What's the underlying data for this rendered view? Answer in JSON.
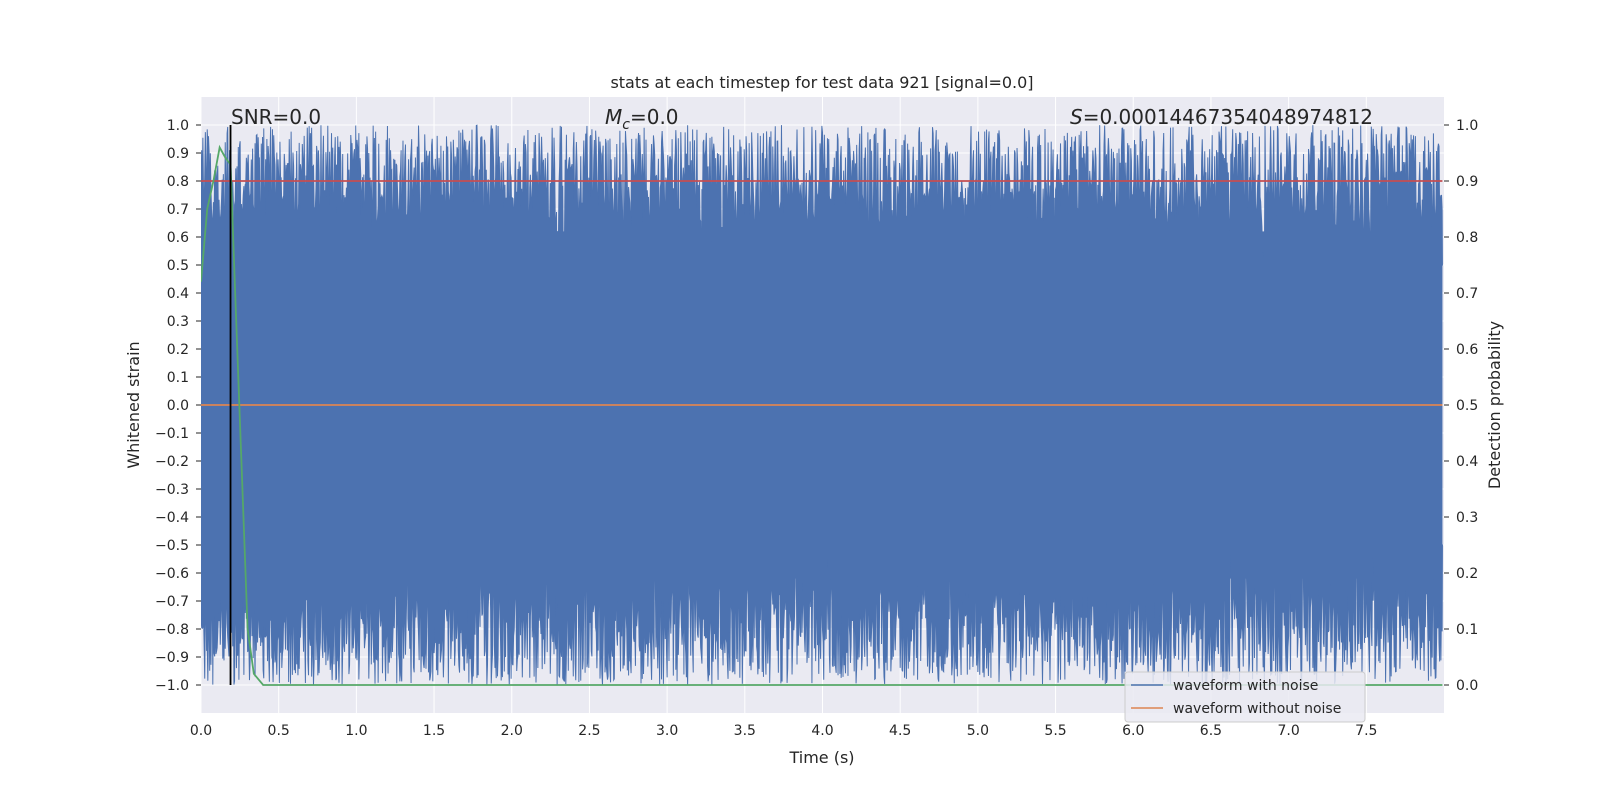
{
  "chart_data": {
    "type": "line",
    "title": "stats at each timestep for test data 921 [signal=0.0]",
    "xlabel": "Time (s)",
    "ylabel_left": "Whitened strain",
    "ylabel_right": "Detection probability",
    "xlim": [
      0.0,
      8.0
    ],
    "ylim_left": [
      -1.1,
      1.1
    ],
    "ylim_right": [
      -0.05,
      1.05
    ],
    "x_ticks": [
      "0.0",
      "0.5",
      "1.0",
      "1.5",
      "2.0",
      "2.5",
      "3.0",
      "3.5",
      "4.0",
      "4.5",
      "5.0",
      "5.5",
      "6.0",
      "6.5",
      "7.0",
      "7.5"
    ],
    "y_ticks_left": [
      "1.0",
      "0.9",
      "0.8",
      "0.7",
      "0.6",
      "0.5",
      "0.4",
      "0.3",
      "0.2",
      "0.1",
      "0.0",
      "−0.1",
      "−0.2",
      "−0.3",
      "−0.4",
      "−0.5",
      "−0.6",
      "−0.7",
      "−0.8",
      "−0.9",
      "−1.0"
    ],
    "y_ticks_right": [
      "1.0",
      "0.9",
      "0.8",
      "0.7",
      "0.6",
      "0.5",
      "0.4",
      "0.3",
      "0.2",
      "0.1",
      "0.0"
    ],
    "grid": true,
    "legend_position": "lower-right",
    "annotations": {
      "snr_label": "SNR=0.0",
      "mc_symbol": "M",
      "mc_subscript": "c",
      "mc_value": "=0.0",
      "s_symbol": "S",
      "s_value": "=0.00014467354048974812"
    },
    "marker_time": 0.19,
    "series": [
      {
        "name": "waveform with noise",
        "color": "#4c72b0",
        "axis": "left",
        "description_value_range": [
          -1.0,
          1.0
        ],
        "x_range": [
          0.0,
          7.99
        ]
      },
      {
        "name": "waveform without noise",
        "color": "#dd8452",
        "axis": "left",
        "x": [
          0.0,
          7.99
        ],
        "y": [
          0.0,
          0.0
        ]
      },
      {
        "color": "#55a868",
        "axis": "right",
        "x": [
          0.0,
          0.04,
          0.08,
          0.12,
          0.16,
          0.19,
          0.22,
          0.26,
          0.3,
          0.34,
          0.4,
          1.0,
          2.0,
          3.0,
          4.0,
          5.0,
          6.0,
          7.0,
          7.99
        ],
        "y": [
          0.72,
          0.85,
          0.9,
          0.96,
          0.94,
          0.93,
          0.7,
          0.4,
          0.1,
          0.02,
          0.0,
          0.0,
          0.0,
          0.0,
          0.0,
          0.0,
          0.0,
          0.0,
          0.0
        ]
      },
      {
        "color": "#c44e52",
        "axis": "right",
        "x": [
          0.0,
          7.99
        ],
        "y": [
          0.9,
          0.9
        ]
      }
    ]
  },
  "colors": {
    "plot_background": "#eaeaf2",
    "grid": "#ffffff",
    "noise_fill": "#4c72b0",
    "marker_line": "#000000"
  }
}
